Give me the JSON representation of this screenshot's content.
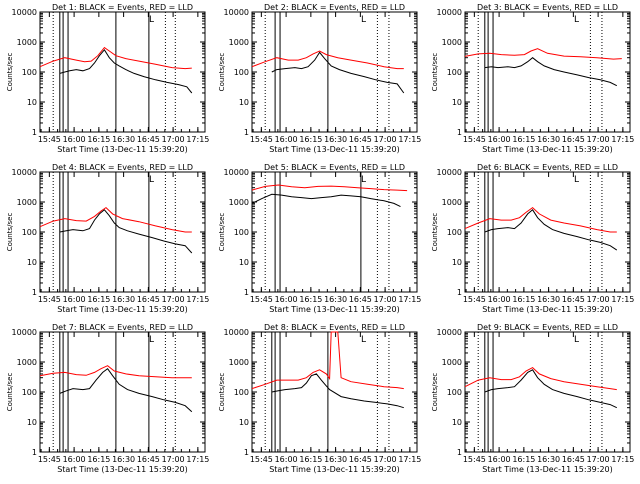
{
  "window": {
    "title": "Det 1 ... Det 9 BLACK = Events, RED = LLD"
  },
  "colors": {
    "events": "#000000",
    "lld": "#ff0000",
    "background": "#ffffff",
    "axes": "#000000"
  },
  "common": {
    "ylabel": "Counts/sec",
    "xlabel": "Start Time (13-Dec-11 15:39:20)",
    "xtick_labels": [
      "15:45",
      "16:00",
      "16:15",
      "16:30",
      "16:45",
      "17:00",
      "17:15"
    ],
    "ytick_labels": [
      "1",
      "10",
      "100",
      "1000",
      "10000"
    ],
    "legend_mark": "L"
  },
  "chart_data": [
    {
      "type": "line",
      "title": "Det 1: BLACK = Events, RED = LLD",
      "xlabel": "Start Time (13-Dec-11 15:39:20)",
      "ylabel": "Counts/sec",
      "x_unit": "minutes after 15:39:20",
      "y_scale": "log",
      "xlim": [
        0,
        100
      ],
      "ylim": [
        1,
        10000
      ],
      "series": [
        {
          "name": "Events",
          "color": "#000000",
          "x": [
            12,
            15,
            18,
            22,
            26,
            30,
            33,
            36,
            39,
            42,
            45,
            48,
            52,
            57,
            63,
            70,
            77,
            84,
            89,
            92
          ],
          "y": [
            90,
            100,
            110,
            120,
            110,
            130,
            200,
            350,
            550,
            300,
            200,
            160,
            120,
            90,
            70,
            55,
            45,
            38,
            32,
            20
          ]
        },
        {
          "name": "LLD",
          "color": "#ff0000",
          "x": [
            0,
            8,
            15,
            22,
            27,
            31,
            35,
            39,
            42,
            46,
            52,
            60,
            70,
            80,
            88,
            92
          ],
          "y": [
            150,
            230,
            300,
            250,
            220,
            230,
            350,
            650,
            500,
            350,
            280,
            230,
            180,
            140,
            130,
            135
          ]
        }
      ],
      "vlines_solid": [
        12,
        14,
        17,
        46,
        66
      ],
      "vlines_dotted": [
        8,
        76,
        82
      ]
    },
    {
      "type": "line",
      "title": "Det 2: BLACK = Events, RED = LLD",
      "xlabel": "Start Time (13-Dec-11 15:39:20)",
      "ylabel": "Counts/sec",
      "x_unit": "minutes after 15:39:20",
      "y_scale": "log",
      "xlim": [
        0,
        100
      ],
      "ylim": [
        1,
        10000
      ],
      "series": [
        {
          "name": "Events",
          "color": "#000000",
          "x": [
            12,
            15,
            20,
            26,
            30,
            34,
            38,
            41,
            44,
            48,
            53,
            60,
            68,
            75,
            82,
            88,
            92
          ],
          "y": [
            100,
            120,
            130,
            140,
            130,
            150,
            250,
            450,
            280,
            160,
            120,
            90,
            70,
            55,
            45,
            40,
            20
          ]
        },
        {
          "name": "LLD",
          "color": "#ff0000",
          "x": [
            0,
            8,
            15,
            22,
            28,
            33,
            37,
            41,
            45,
            52,
            60,
            70,
            80,
            88,
            92
          ],
          "y": [
            150,
            220,
            300,
            250,
            250,
            300,
            400,
            500,
            380,
            300,
            250,
            200,
            150,
            130,
            130
          ]
        }
      ],
      "vlines_solid": [
        14,
        17,
        46
      ],
      "vlines_dotted": [
        8,
        76,
        83
      ]
    },
    {
      "type": "line",
      "title": "Det 3: BLACK = Events, RED = LLD",
      "xlabel": "Start Time (13-Dec-11 15:39:20)",
      "ylabel": "Counts/sec",
      "x_unit": "minutes after 15:39:20",
      "y_scale": "log",
      "xlim": [
        0,
        100
      ],
      "ylim": [
        1,
        10000
      ],
      "series": [
        {
          "name": "Events",
          "color": "#000000",
          "x": [
            12,
            16,
            20,
            26,
            30,
            34,
            38,
            41,
            44,
            48,
            54,
            60,
            68,
            75,
            82,
            88,
            92
          ],
          "y": [
            140,
            150,
            140,
            150,
            140,
            160,
            220,
            300,
            220,
            160,
            120,
            100,
            80,
            65,
            55,
            45,
            35
          ]
        },
        {
          "name": "LLD",
          "color": "#ff0000",
          "x": [
            0,
            8,
            15,
            22,
            30,
            36,
            40,
            44,
            50,
            60,
            70,
            80,
            90,
            95
          ],
          "y": [
            330,
            400,
            420,
            380,
            360,
            380,
            500,
            600,
            420,
            340,
            320,
            300,
            270,
            280
          ]
        }
      ],
      "vlines_solid": [
        12,
        14,
        17
      ],
      "vlines_dotted": [
        8,
        76,
        83
      ]
    },
    {
      "type": "line",
      "title": "Det 4: BLACK = Events, RED = LLD",
      "xlabel": "Start Time (13-Dec-11 15:39:20)",
      "ylabel": "Counts/sec",
      "x_unit": "minutes after 15:39:20",
      "y_scale": "log",
      "xlim": [
        0,
        100
      ],
      "ylim": [
        1,
        10000
      ],
      "series": [
        {
          "name": "Events",
          "color": "#000000",
          "x": [
            12,
            16,
            20,
            26,
            30,
            33,
            36,
            39,
            42,
            45,
            48,
            53,
            60,
            68,
            75,
            82,
            88,
            92
          ],
          "y": [
            100,
            110,
            120,
            110,
            130,
            250,
            400,
            550,
            350,
            200,
            140,
            110,
            85,
            65,
            50,
            40,
            35,
            20
          ]
        },
        {
          "name": "LLD",
          "color": "#ff0000",
          "x": [
            0,
            8,
            15,
            22,
            28,
            33,
            37,
            40,
            44,
            50,
            60,
            70,
            80,
            88,
            92
          ],
          "y": [
            150,
            230,
            280,
            240,
            230,
            330,
            500,
            650,
            400,
            280,
            220,
            160,
            120,
            100,
            100
          ]
        }
      ],
      "vlines_solid": [
        12,
        14,
        17,
        46,
        66
      ],
      "vlines_dotted": [
        8,
        76,
        82
      ]
    },
    {
      "type": "line",
      "title": "Det 5: BLACK = Events, RED = LLD",
      "xlabel": "Start Time (13-Dec-11 15:39:20)",
      "ylabel": "Counts/sec",
      "x_unit": "minutes after 15:39:20",
      "y_scale": "log",
      "xlim": [
        0,
        100
      ],
      "ylim": [
        1,
        10000
      ],
      "series": [
        {
          "name": "Events",
          "color": "#000000",
          "x": [
            0,
            6,
            12,
            18,
            24,
            30,
            36,
            42,
            48,
            54,
            60,
            66,
            72,
            80,
            86,
            90
          ],
          "y": [
            900,
            1300,
            1800,
            1700,
            1500,
            1400,
            1300,
            1400,
            1500,
            1700,
            1600,
            1500,
            1300,
            1100,
            900,
            700
          ]
        },
        {
          "name": "LLD",
          "color": "#ff0000",
          "x": [
            0,
            8,
            16,
            24,
            32,
            40,
            48,
            56,
            64,
            72,
            80,
            88,
            94
          ],
          "y": [
            2500,
            3300,
            3700,
            3200,
            3000,
            3300,
            3400,
            3200,
            3000,
            2800,
            2600,
            2500,
            2400
          ]
        }
      ],
      "vlines_solid": [
        14,
        17,
        66
      ],
      "vlines_dotted": [
        8,
        76,
        83
      ]
    },
    {
      "type": "line",
      "title": "Det 6: BLACK = Events, RED = LLD",
      "xlabel": "Start Time (13-Dec-11 15:39:20)",
      "ylabel": "Counts/sec",
      "x_unit": "minutes after 15:39:20",
      "y_scale": "log",
      "xlim": [
        0,
        100
      ],
      "ylim": [
        1,
        10000
      ],
      "series": [
        {
          "name": "Events",
          "color": "#000000",
          "x": [
            12,
            16,
            20,
            26,
            30,
            34,
            38,
            41,
            44,
            48,
            53,
            60,
            68,
            75,
            82,
            88,
            92
          ],
          "y": [
            100,
            120,
            130,
            140,
            130,
            200,
            400,
            550,
            300,
            180,
            120,
            90,
            70,
            55,
            45,
            35,
            25
          ]
        },
        {
          "name": "LLD",
          "color": "#ff0000",
          "x": [
            0,
            8,
            15,
            22,
            28,
            33,
            37,
            41,
            45,
            52,
            60,
            70,
            80,
            88,
            92
          ],
          "y": [
            130,
            200,
            280,
            250,
            250,
            300,
            450,
            650,
            400,
            250,
            200,
            160,
            120,
            100,
            100
          ]
        }
      ],
      "vlines_solid": [
        12,
        14,
        17
      ],
      "vlines_dotted": [
        8,
        76,
        83
      ]
    },
    {
      "type": "line",
      "title": "Det 7: BLACK = Events, RED = LLD",
      "xlabel": "Start Time (13-Dec-11 15:39:20)",
      "ylabel": "Counts/sec",
      "x_unit": "minutes after 15:39:20",
      "y_scale": "log",
      "xlim": [
        0,
        100
      ],
      "ylim": [
        1,
        10000
      ],
      "series": [
        {
          "name": "Events",
          "color": "#000000",
          "x": [
            12,
            16,
            20,
            26,
            30,
            34,
            38,
            41,
            44,
            48,
            53,
            60,
            68,
            75,
            82,
            88,
            92
          ],
          "y": [
            90,
            110,
            130,
            120,
            130,
            250,
            450,
            600,
            350,
            180,
            120,
            90,
            70,
            55,
            45,
            35,
            22
          ]
        },
        {
          "name": "LLD",
          "color": "#ff0000",
          "x": [
            0,
            8,
            15,
            22,
            28,
            33,
            37,
            41,
            45,
            52,
            60,
            70,
            80,
            88,
            92
          ],
          "y": [
            350,
            420,
            450,
            380,
            360,
            450,
            600,
            750,
            500,
            400,
            350,
            320,
            300,
            300,
            300
          ]
        }
      ],
      "vlines_solid": [
        12,
        14,
        17,
        46,
        66
      ],
      "vlines_dotted": [
        8,
        76,
        82
      ]
    },
    {
      "type": "line",
      "title": "Det 8: BLACK = Events, RED = LLD",
      "xlabel": "Start Time (13-Dec-11 15:39:20)",
      "ylabel": "Counts/sec",
      "x_unit": "minutes after 15:39:20",
      "y_scale": "log",
      "xlim": [
        0,
        100
      ],
      "ylim": [
        1,
        10000
      ],
      "series": [
        {
          "name": "Events",
          "color": "#000000",
          "x": [
            12,
            16,
            20,
            26,
            30,
            33,
            36,
            39,
            42,
            45,
            47,
            54,
            60,
            68,
            75,
            82,
            88,
            92
          ],
          "y": [
            100,
            110,
            120,
            130,
            140,
            200,
            350,
            400,
            250,
            160,
            120,
            70,
            60,
            50,
            45,
            40,
            35,
            30
          ]
        },
        {
          "name": "LLD",
          "color": "#ff0000",
          "x": [
            0,
            8,
            15,
            22,
            28,
            33,
            37,
            41,
            45,
            47,
            48,
            52,
            54,
            60,
            70,
            80,
            88,
            92
          ],
          "y": [
            130,
            180,
            250,
            250,
            250,
            300,
            450,
            550,
            400,
            280,
            10000,
            10000,
            300,
            220,
            180,
            150,
            140,
            130
          ]
        }
      ],
      "vlines_solid": [
        12,
        14,
        17,
        46
      ],
      "vlines_dotted": [
        8,
        76,
        83
      ]
    },
    {
      "type": "line",
      "title": "Det 9: BLACK = Events, RED = LLD",
      "xlabel": "Start Time (13-Dec-11 15:39:20)",
      "ylabel": "Counts/sec",
      "x_unit": "minutes after 15:39:20",
      "y_scale": "log",
      "xlim": [
        0,
        100
      ],
      "ylim": [
        1,
        10000
      ],
      "series": [
        {
          "name": "Events",
          "color": "#000000",
          "x": [
            12,
            16,
            20,
            26,
            30,
            34,
            38,
            41,
            44,
            48,
            53,
            60,
            68,
            75,
            82,
            88,
            92
          ],
          "y": [
            100,
            120,
            130,
            140,
            150,
            250,
            450,
            550,
            300,
            180,
            120,
            90,
            70,
            55,
            45,
            38,
            30
          ]
        },
        {
          "name": "LLD",
          "color": "#ff0000",
          "x": [
            0,
            8,
            15,
            22,
            28,
            33,
            37,
            41,
            45,
            52,
            60,
            70,
            80,
            88,
            92
          ],
          "y": [
            150,
            250,
            300,
            260,
            260,
            320,
            500,
            650,
            400,
            280,
            220,
            180,
            150,
            130,
            120
          ]
        }
      ],
      "vlines_solid": [
        12,
        14,
        17
      ],
      "vlines_dotted": [
        8,
        76,
        83
      ]
    }
  ]
}
